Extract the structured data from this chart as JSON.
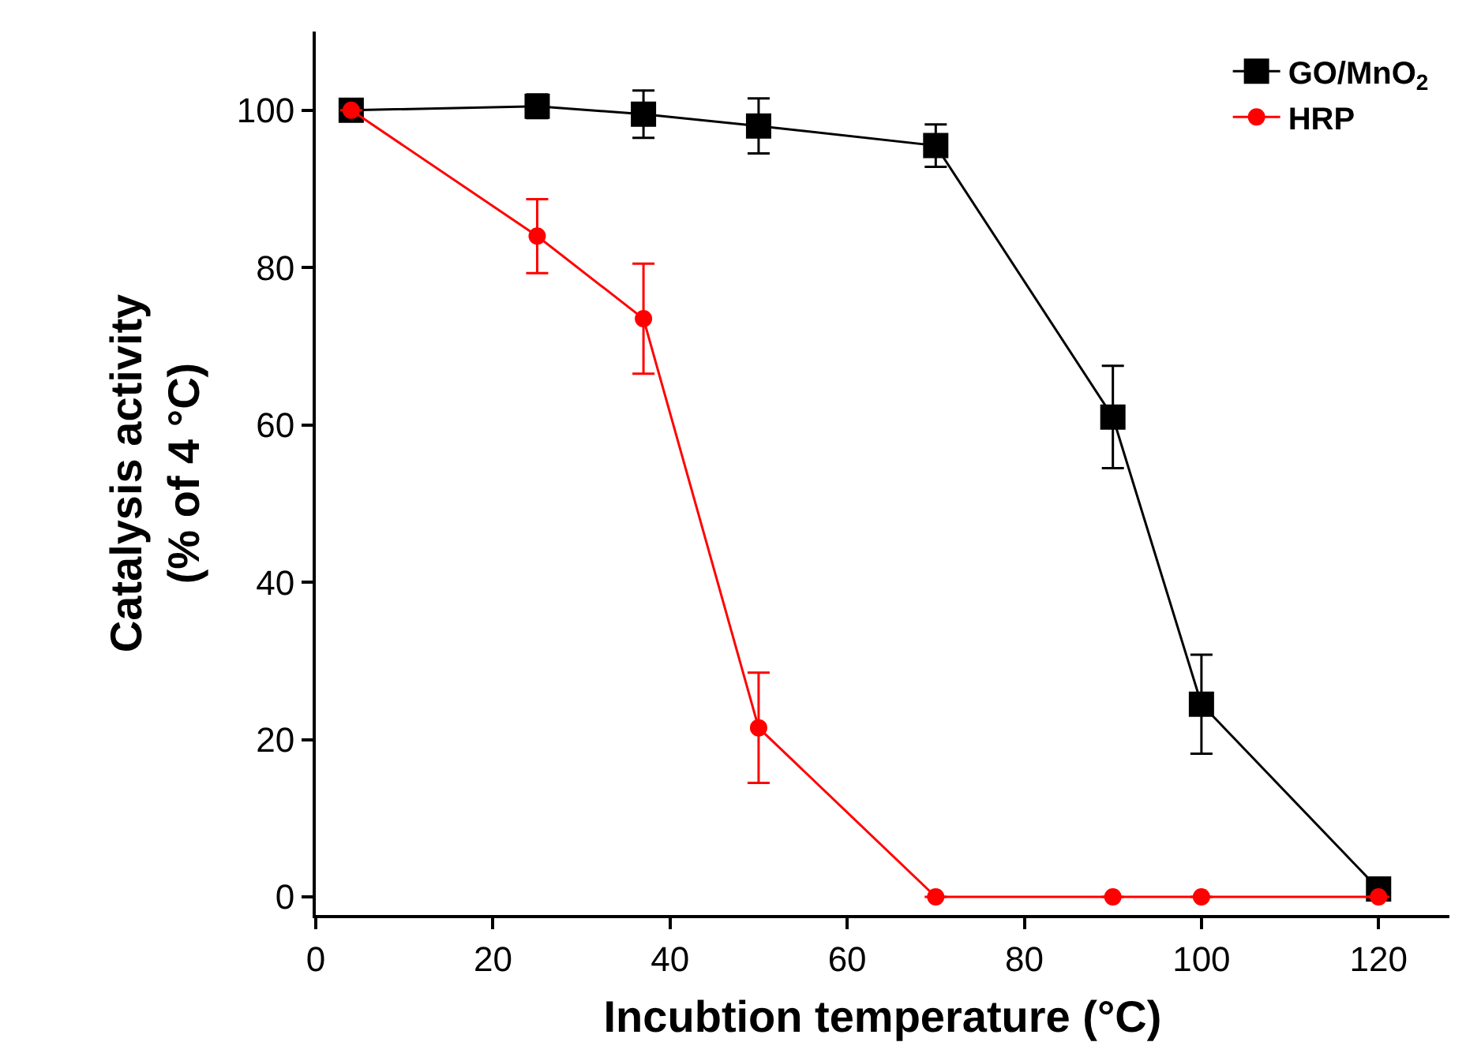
{
  "chart_data": {
    "type": "line",
    "xlabel": "Incubtion temperature (°C)",
    "ylabel": "Catalysis activity\n(% of 4 °C)",
    "x": [
      4,
      25,
      37,
      50,
      70,
      90,
      100,
      120
    ],
    "series": [
      {
        "name": "GO/MnO$_{2}$",
        "color": "#000000",
        "marker": "square",
        "values": [
          100,
          100.5,
          99.5,
          98,
          95.5,
          61,
          24.5,
          1
        ],
        "errors": [
          null,
          1.5,
          3,
          3.5,
          2.7,
          6.5,
          6.3,
          null
        ]
      },
      {
        "name": "HRP",
        "color": "#ff0000",
        "marker": "circle",
        "values": [
          100,
          84,
          73.5,
          21.5,
          0,
          0,
          0,
          0
        ],
        "errors": [
          null,
          4.7,
          7,
          7,
          null,
          null,
          null,
          null
        ]
      }
    ],
    "xlim": [
      0,
      128
    ],
    "xticks": [
      0,
      20,
      40,
      60,
      80,
      100,
      120
    ],
    "ylim": [
      -2.3,
      110
    ],
    "yticks": [
      0,
      20,
      40,
      60,
      80,
      100
    ],
    "legend": "top right",
    "line_style": "solid"
  }
}
